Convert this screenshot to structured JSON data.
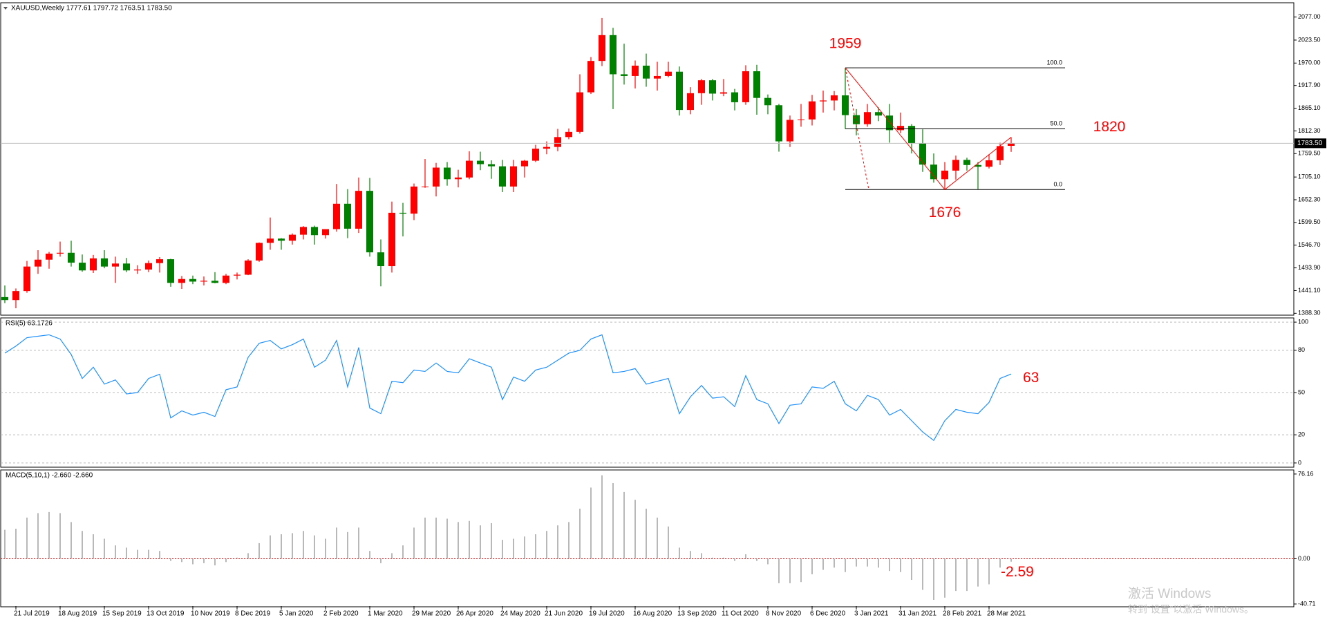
{
  "chart_data": [
    {
      "type": "candlestick",
      "title": "XAUUSD,Weekly  1777.61 1797.72 1763.51 1783.50",
      "categories": [
        null,
        "21 Jul 2019",
        null,
        null,
        null,
        "18 Aug 2019",
        null,
        null,
        null,
        "15 Sep 2019",
        null,
        null,
        null,
        "13 Oct 2019",
        null,
        null,
        null,
        "10 Nov 2019",
        null,
        null,
        null,
        "8 Dec 2019",
        null,
        null,
        null,
        "5 Jan 2020",
        null,
        null,
        null,
        "2 Feb 2020",
        null,
        null,
        null,
        "1 Mar 2020",
        null,
        null,
        null,
        "29 Mar 2020",
        null,
        null,
        null,
        "26 Apr 2020",
        null,
        null,
        null,
        "24 May 2020",
        null,
        null,
        null,
        "21 Jun 2020",
        null,
        null,
        null,
        "19 Jul 2020",
        null,
        null,
        null,
        "16 Aug 2020",
        null,
        null,
        null,
        "13 Sep 2020",
        null,
        null,
        null,
        "11 Oct 2020",
        null,
        null,
        null,
        "8 Nov 2020",
        null,
        null,
        null,
        "6 Dec 2020",
        null,
        null,
        null,
        "3 Jan 2021",
        null,
        null,
        null,
        "31 Jan 2021",
        null,
        null,
        null,
        "28 Feb 2021",
        null,
        null,
        null,
        "28 Mar 2021",
        null,
        null
      ],
      "ohlc": [
        [
          1426,
          1453,
          1412,
          1419
        ],
        [
          1419,
          1446,
          1400,
          1440
        ],
        [
          1440,
          1510,
          1436,
          1497
        ],
        [
          1497,
          1535,
          1480,
          1513
        ],
        [
          1513,
          1531,
          1492,
          1527
        ],
        [
          1527,
          1555,
          1520,
          1529
        ],
        [
          1529,
          1557,
          1497,
          1506
        ],
        [
          1506,
          1525,
          1485,
          1488
        ],
        [
          1488,
          1524,
          1482,
          1516
        ],
        [
          1516,
          1535,
          1493,
          1497
        ],
        [
          1497,
          1520,
          1459,
          1504
        ],
        [
          1504,
          1517,
          1484,
          1488
        ],
        [
          1488,
          1500,
          1480,
          1490
        ],
        [
          1490,
          1511,
          1484,
          1505
        ],
        [
          1505,
          1519,
          1483,
          1514
        ],
        [
          1514,
          1515,
          1450,
          1459
        ],
        [
          1459,
          1475,
          1445,
          1468
        ],
        [
          1468,
          1476,
          1456,
          1462
        ],
        [
          1462,
          1474,
          1453,
          1464
        ],
        [
          1464,
          1484,
          1458,
          1459
        ],
        [
          1459,
          1480,
          1456,
          1476
        ],
        [
          1476,
          1483,
          1467,
          1478
        ],
        [
          1478,
          1514,
          1477,
          1511
        ],
        [
          1511,
          1553,
          1508,
          1552
        ],
        [
          1552,
          1611,
          1536,
          1562
        ],
        [
          1562,
          1563,
          1536,
          1557
        ],
        [
          1557,
          1574,
          1548,
          1571
        ],
        [
          1571,
          1591,
          1560,
          1589
        ],
        [
          1589,
          1592,
          1548,
          1570
        ],
        [
          1570,
          1584,
          1562,
          1584
        ],
        [
          1584,
          1689,
          1578,
          1643
        ],
        [
          1643,
          1677,
          1563,
          1585
        ],
        [
          1585,
          1704,
          1575,
          1673
        ],
        [
          1673,
          1703,
          1520,
          1530
        ],
        [
          1530,
          1560,
          1451,
          1498
        ],
        [
          1498,
          1648,
          1483,
          1622
        ],
        [
          1622,
          1645,
          1567,
          1620
        ],
        [
          1620,
          1690,
          1605,
          1683
        ],
        [
          1683,
          1747,
          1680,
          1683
        ],
        [
          1683,
          1738,
          1660,
          1727
        ],
        [
          1727,
          1740,
          1685,
          1700
        ],
        [
          1700,
          1722,
          1681,
          1704
        ],
        [
          1704,
          1765,
          1700,
          1743
        ],
        [
          1743,
          1764,
          1721,
          1735
        ],
        [
          1735,
          1744,
          1701,
          1730
        ],
        [
          1730,
          1745,
          1670,
          1683
        ],
        [
          1683,
          1745,
          1670,
          1730
        ],
        [
          1730,
          1745,
          1704,
          1743
        ],
        [
          1743,
          1780,
          1740,
          1771
        ],
        [
          1771,
          1788,
          1758,
          1775
        ],
        [
          1775,
          1817,
          1765,
          1798
        ],
        [
          1798,
          1818,
          1793,
          1810
        ],
        [
          1810,
          1944,
          1806,
          1902
        ],
        [
          1902,
          1984,
          1898,
          1975
        ],
        [
          1975,
          2075,
          1963,
          2035
        ],
        [
          2035,
          2052,
          1863,
          1944
        ],
        [
          1944,
          2015,
          1920,
          1940
        ],
        [
          1940,
          1976,
          1911,
          1964
        ],
        [
          1964,
          1992,
          1915,
          1934
        ],
        [
          1934,
          1973,
          1906,
          1940
        ],
        [
          1940,
          1973,
          1937,
          1950
        ],
        [
          1950,
          1962,
          1848,
          1861
        ],
        [
          1861,
          1914,
          1851,
          1900
        ],
        [
          1900,
          1933,
          1873,
          1930
        ],
        [
          1930,
          1933,
          1883,
          1899
        ],
        [
          1899,
          1933,
          1893,
          1902
        ],
        [
          1902,
          1910,
          1860,
          1879
        ],
        [
          1879,
          1965,
          1873,
          1951
        ],
        [
          1951,
          1966,
          1850,
          1889
        ],
        [
          1889,
          1897,
          1851,
          1872
        ],
        [
          1872,
          1875,
          1764,
          1788
        ],
        [
          1788,
          1848,
          1775,
          1838
        ],
        [
          1838,
          1875,
          1822,
          1839
        ],
        [
          1839,
          1896,
          1825,
          1881
        ],
        [
          1881,
          1906,
          1855,
          1883
        ],
        [
          1883,
          1905,
          1860,
          1895
        ],
        [
          1895,
          1959,
          1817,
          1849
        ],
        [
          1849,
          1863,
          1802,
          1828
        ],
        [
          1828,
          1875,
          1822,
          1856
        ],
        [
          1856,
          1867,
          1835,
          1848
        ],
        [
          1848,
          1875,
          1785,
          1814
        ],
        [
          1814,
          1855,
          1807,
          1824
        ],
        [
          1824,
          1828,
          1760,
          1784
        ],
        [
          1784,
          1816,
          1717,
          1734
        ],
        [
          1734,
          1760,
          1692,
          1700
        ],
        [
          1700,
          1740,
          1676,
          1720
        ],
        [
          1720,
          1755,
          1699,
          1745
        ],
        [
          1745,
          1750,
          1720,
          1733
        ],
        [
          1733,
          1740,
          1677,
          1729
        ],
        [
          1729,
          1758,
          1725,
          1744
        ],
        [
          1744,
          1785,
          1733,
          1777
        ],
        [
          1777.61,
          1797.72,
          1763.51,
          1783.5
        ]
      ],
      "up_color": "#ff0000",
      "down_color": "#008000",
      "ylim": [
        1384,
        2107
      ],
      "yticks": [
        {
          "value": 2077,
          "label": "2077.00"
        },
        {
          "value": 2023.5,
          "label": "2023.50"
        },
        {
          "value": 1970,
          "label": "1970.00"
        },
        {
          "value": 1917.9,
          "label": "1917.90"
        },
        {
          "value": 1865.1,
          "label": "1865.10"
        },
        {
          "value": 1812.3,
          "label": "1812.30"
        },
        {
          "value": 1759.5,
          "label": "1759.50"
        },
        {
          "value": 1705.1,
          "label": "1705.10"
        },
        {
          "value": 1652.3,
          "label": "1652.30"
        },
        {
          "value": 1599.5,
          "label": "1599.50"
        },
        {
          "value": 1546.7,
          "label": "1546.70"
        },
        {
          "value": 1493.9,
          "label": "1493.90"
        },
        {
          "value": 1441.1,
          "label": "1441.10"
        },
        {
          "value": 1388.3,
          "label": "1388.30"
        }
      ],
      "last_price": {
        "value": 1783.5,
        "label": "1783.50"
      },
      "fibonacci": {
        "high": 1959,
        "low": 1676,
        "color": "#000000",
        "levels": [
          {
            "value": 100,
            "label": "100.0"
          },
          {
            "value": 50,
            "label": "50.0"
          },
          {
            "value": 0,
            "label": "0.0"
          }
        ]
      },
      "annotations": [
        1959,
        1820,
        1676
      ],
      "annotation_color": "#ff0000"
    },
    {
      "type": "line",
      "title": "RSI(5) 63.1726",
      "color": "#1e90ff",
      "values": [
        78,
        83,
        89,
        90,
        91,
        88,
        77,
        60,
        68,
        56,
        59,
        49,
        50,
        60,
        63,
        32,
        37,
        34,
        36,
        33,
        52,
        54,
        75,
        85,
        87,
        81,
        84,
        88,
        68,
        73,
        87,
        54,
        82,
        39,
        35,
        58,
        57,
        66,
        65,
        71,
        65,
        64,
        74,
        71,
        68,
        45,
        61,
        58,
        66,
        68,
        73,
        78,
        80,
        88,
        91,
        64,
        65,
        67,
        56,
        58,
        60,
        35,
        47,
        55,
        46,
        47,
        40,
        62,
        45,
        42,
        28,
        41,
        42,
        54,
        53,
        58,
        42,
        37,
        48,
        45,
        34,
        38,
        30,
        22,
        16,
        30,
        38,
        36,
        35,
        43,
        60,
        63.17
      ],
      "ylim": [
        -3,
        103
      ],
      "yticks": [
        100,
        80,
        50,
        20,
        0
      ],
      "grid": true,
      "annotations": [
        63
      ],
      "annotation_color": "#ff0000"
    },
    {
      "type": "bar",
      "title": "MACD(5,10,1) -2.660 -2.660",
      "color": "#a0a0a0",
      "values": [
        26,
        27,
        37,
        41,
        42,
        41,
        33,
        25,
        22,
        18,
        12,
        10,
        8,
        8,
        7,
        -2,
        -3,
        -5,
        -4,
        -6,
        -3,
        1,
        5,
        14,
        21,
        22,
        23,
        25,
        21,
        18,
        28,
        24,
        28,
        7,
        -4,
        5,
        12,
        28,
        37,
        37,
        36,
        33,
        34,
        30,
        32,
        17,
        18,
        20,
        22,
        25,
        30,
        33,
        45,
        64,
        75,
        68,
        60,
        53,
        45,
        37,
        29,
        10,
        7,
        5,
        1,
        1,
        -2,
        4,
        -2,
        -5,
        -22,
        -22,
        -21,
        -14,
        -10,
        -8,
        -12,
        -7,
        -7,
        -8,
        -11,
        -12,
        -19,
        -28,
        -37,
        -35,
        -29,
        -29,
        -25,
        -23,
        -8,
        -2.66
      ],
      "ylim": [
        -42.6,
        79.2
      ],
      "yticks": [
        76.16,
        {
          "value": 0,
          "label": "0.00"
        },
        -40.71
      ],
      "zero_line_color": "#ff0000",
      "annotations": [
        -2.59
      ],
      "annotation_color": "#ff0000"
    }
  ],
  "watermark": [
    "激活 Windows",
    "转到“设置”以激活 Windows。"
  ]
}
